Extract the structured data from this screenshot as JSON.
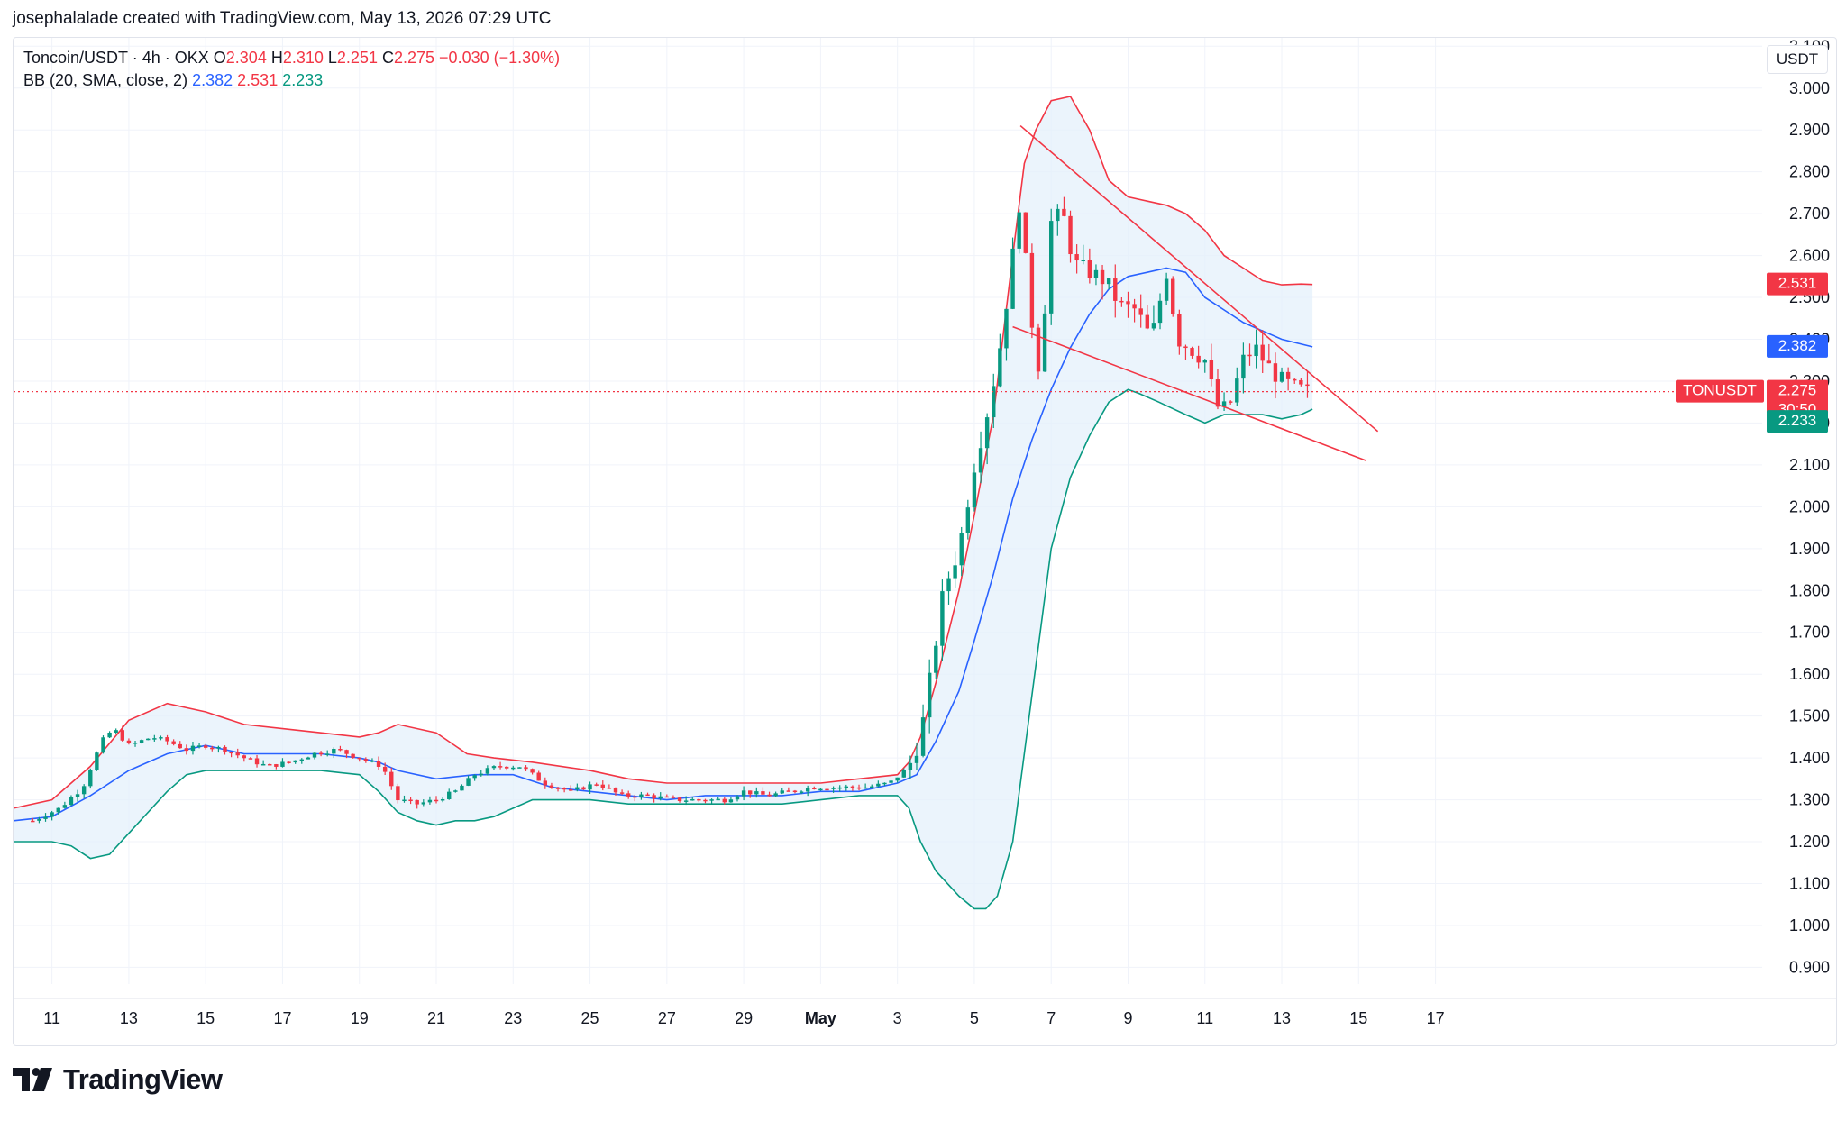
{
  "credit": "josephalalade created with TradingView.com, May 13, 2026 07:29 UTC",
  "legend": {
    "symbol": "Toncoin/USDT · 4h · OKX",
    "o_label": "O",
    "o_value": "2.304",
    "h_label": "H",
    "h_value": "2.310",
    "l_label": "L",
    "l_value": "2.251",
    "c_label": "C",
    "c_value": "2.275",
    "change": "−0.030 (−1.30%)",
    "bb_label": "BB (20, SMA, close, 2)",
    "bb_basis": "2.382",
    "bb_upper": "2.531",
    "bb_lower": "2.233"
  },
  "currency_button": "USDT",
  "brand": "TradingView",
  "price_tags": {
    "symbol": "TONUSDT",
    "price": "2.275",
    "countdown": "30:50",
    "upper": "2.531",
    "basis": "2.382",
    "lower": "2.233"
  },
  "colors": {
    "up": "#089981",
    "down": "#f23645",
    "basis": "#2962ff",
    "upper": "#f23645",
    "lower": "#089981",
    "band_fill": "#e3effb",
    "trendline": "#f23645"
  },
  "chart_data": {
    "type": "candlestick",
    "x_tick_labels": [
      "11",
      "13",
      "15",
      "17",
      "19",
      "21",
      "23",
      "25",
      "27",
      "29",
      "May",
      "3",
      "5",
      "7",
      "9",
      "11",
      "13",
      "15",
      "17"
    ],
    "y_tick_labels": [
      "0.900",
      "1.000",
      "1.100",
      "1.200",
      "1.300",
      "1.400",
      "1.500",
      "1.600",
      "1.700",
      "1.800",
      "1.900",
      "2.000",
      "2.100",
      "2.200",
      "2.300",
      "2.400",
      "2.500",
      "2.600",
      "2.700",
      "2.800",
      "2.900",
      "3.000",
      "3.100"
    ],
    "ylim": [
      0.86,
      3.12
    ],
    "xlim_days": [
      0,
      45.5
    ],
    "candle_days": [
      0.5,
      33.8
    ],
    "close_path": [
      [
        0.5,
        1.25
      ],
      [
        1.2,
        1.28
      ],
      [
        1.8,
        1.33
      ],
      [
        2.3,
        1.44
      ],
      [
        2.6,
        1.47
      ],
      [
        3.0,
        1.43
      ],
      [
        3.6,
        1.45
      ],
      [
        4.0,
        1.44
      ],
      [
        4.5,
        1.42
      ],
      [
        5.0,
        1.43
      ],
      [
        5.5,
        1.42
      ],
      [
        6.0,
        1.4
      ],
      [
        6.6,
        1.38
      ],
      [
        7.2,
        1.39
      ],
      [
        7.8,
        1.41
      ],
      [
        8.4,
        1.42
      ],
      [
        9.0,
        1.4
      ],
      [
        9.6,
        1.38
      ],
      [
        10.0,
        1.3
      ],
      [
        10.5,
        1.29
      ],
      [
        11.0,
        1.3
      ],
      [
        11.5,
        1.32
      ],
      [
        12.0,
        1.36
      ],
      [
        12.6,
        1.38
      ],
      [
        13.2,
        1.38
      ],
      [
        13.8,
        1.34
      ],
      [
        14.5,
        1.32
      ],
      [
        15.2,
        1.34
      ],
      [
        15.8,
        1.31
      ],
      [
        16.5,
        1.31
      ],
      [
        17.2,
        1.3
      ],
      [
        17.8,
        1.3
      ],
      [
        18.5,
        1.3
      ],
      [
        19.0,
        1.32
      ],
      [
        19.6,
        1.31
      ],
      [
        20.2,
        1.32
      ],
      [
        20.8,
        1.33
      ],
      [
        21.5,
        1.33
      ],
      [
        22.2,
        1.33
      ],
      [
        22.8,
        1.34
      ],
      [
        23.3,
        1.38
      ],
      [
        23.6,
        1.45
      ],
      [
        23.9,
        1.62
      ],
      [
        24.2,
        1.8
      ],
      [
        24.6,
        1.9
      ],
      [
        25.0,
        2.1
      ],
      [
        25.4,
        2.25
      ],
      [
        25.7,
        2.4
      ],
      [
        26.0,
        2.6
      ],
      [
        26.2,
        2.75
      ],
      [
        26.4,
        2.5
      ],
      [
        26.7,
        2.32
      ],
      [
        27.0,
        2.68
      ],
      [
        27.3,
        2.7
      ],
      [
        27.6,
        2.58
      ],
      [
        28.0,
        2.56
      ],
      [
        28.4,
        2.54
      ],
      [
        28.8,
        2.48
      ],
      [
        29.2,
        2.47
      ],
      [
        29.6,
        2.4
      ],
      [
        30.0,
        2.56
      ],
      [
        30.3,
        2.4
      ],
      [
        30.6,
        2.38
      ],
      [
        31.0,
        2.35
      ],
      [
        31.3,
        2.24
      ],
      [
        31.6,
        2.23
      ],
      [
        32.0,
        2.35
      ],
      [
        32.3,
        2.38
      ],
      [
        32.6,
        2.34
      ],
      [
        33.0,
        2.3
      ],
      [
        33.4,
        2.28
      ],
      [
        33.8,
        2.275
      ]
    ],
    "bollinger": {
      "upper": [
        [
          0,
          1.28
        ],
        [
          1,
          1.3
        ],
        [
          2,
          1.38
        ],
        [
          3,
          1.49
        ],
        [
          4,
          1.53
        ],
        [
          5,
          1.51
        ],
        [
          6,
          1.48
        ],
        [
          7,
          1.47
        ],
        [
          8,
          1.46
        ],
        [
          9,
          1.45
        ],
        [
          9.5,
          1.46
        ],
        [
          10,
          1.48
        ],
        [
          11,
          1.46
        ],
        [
          11.8,
          1.41
        ],
        [
          12.5,
          1.4
        ],
        [
          13.5,
          1.39
        ],
        [
          15,
          1.37
        ],
        [
          16,
          1.35
        ],
        [
          17,
          1.34
        ],
        [
          18,
          1.34
        ],
        [
          19,
          1.34
        ],
        [
          20,
          1.34
        ],
        [
          21,
          1.34
        ],
        [
          22,
          1.35
        ],
        [
          23,
          1.36
        ],
        [
          23.3,
          1.39
        ],
        [
          23.6,
          1.45
        ],
        [
          24,
          1.58
        ],
        [
          24.6,
          1.8
        ],
        [
          25,
          1.98
        ],
        [
          25.5,
          2.22
        ],
        [
          26,
          2.6
        ],
        [
          26.3,
          2.82
        ],
        [
          26.6,
          2.9
        ],
        [
          27,
          2.97
        ],
        [
          27.5,
          2.98
        ],
        [
          28,
          2.9
        ],
        [
          28.5,
          2.78
        ],
        [
          29,
          2.74
        ],
        [
          29.5,
          2.73
        ],
        [
          30,
          2.72
        ],
        [
          30.5,
          2.7
        ],
        [
          31,
          2.66
        ],
        [
          31.5,
          2.6
        ],
        [
          32,
          2.57
        ],
        [
          32.5,
          2.54
        ],
        [
          33,
          2.53
        ],
        [
          33.5,
          2.532
        ],
        [
          33.8,
          2.531
        ]
      ],
      "basis": [
        [
          0,
          1.25
        ],
        [
          1,
          1.26
        ],
        [
          2,
          1.31
        ],
        [
          3,
          1.37
        ],
        [
          4,
          1.41
        ],
        [
          5,
          1.43
        ],
        [
          6,
          1.41
        ],
        [
          7,
          1.41
        ],
        [
          8,
          1.41
        ],
        [
          9,
          1.4
        ],
        [
          9.5,
          1.39
        ],
        [
          10,
          1.37
        ],
        [
          11,
          1.35
        ],
        [
          12,
          1.36
        ],
        [
          13,
          1.36
        ],
        [
          14,
          1.33
        ],
        [
          15,
          1.32
        ],
        [
          16,
          1.31
        ],
        [
          17,
          1.3
        ],
        [
          18,
          1.31
        ],
        [
          19,
          1.31
        ],
        [
          20,
          1.31
        ],
        [
          21,
          1.32
        ],
        [
          22,
          1.32
        ],
        [
          23,
          1.34
        ],
        [
          23.5,
          1.36
        ],
        [
          24,
          1.44
        ],
        [
          24.6,
          1.56
        ],
        [
          25,
          1.68
        ],
        [
          25.5,
          1.84
        ],
        [
          26,
          2.02
        ],
        [
          26.5,
          2.16
        ],
        [
          27,
          2.28
        ],
        [
          27.5,
          2.38
        ],
        [
          28,
          2.46
        ],
        [
          28.5,
          2.52
        ],
        [
          29,
          2.55
        ],
        [
          29.5,
          2.56
        ],
        [
          30,
          2.57
        ],
        [
          30.5,
          2.56
        ],
        [
          31,
          2.5
        ],
        [
          31.5,
          2.47
        ],
        [
          32,
          2.44
        ],
        [
          32.5,
          2.42
        ],
        [
          33,
          2.4
        ],
        [
          33.8,
          2.382
        ]
      ],
      "lower": [
        [
          0,
          1.2
        ],
        [
          1,
          1.2
        ],
        [
          1.5,
          1.19
        ],
        [
          2,
          1.16
        ],
        [
          2.5,
          1.17
        ],
        [
          3,
          1.22
        ],
        [
          3.5,
          1.27
        ],
        [
          4,
          1.32
        ],
        [
          4.5,
          1.36
        ],
        [
          5,
          1.37
        ],
        [
          6,
          1.37
        ],
        [
          7,
          1.37
        ],
        [
          8,
          1.37
        ],
        [
          9,
          1.36
        ],
        [
          9.5,
          1.32
        ],
        [
          10,
          1.27
        ],
        [
          10.5,
          1.25
        ],
        [
          11,
          1.24
        ],
        [
          11.5,
          1.25
        ],
        [
          12,
          1.25
        ],
        [
          12.5,
          1.26
        ],
        [
          13,
          1.28
        ],
        [
          13.5,
          1.3
        ],
        [
          14,
          1.3
        ],
        [
          15,
          1.3
        ],
        [
          16,
          1.29
        ],
        [
          17,
          1.29
        ],
        [
          18,
          1.29
        ],
        [
          19,
          1.29
        ],
        [
          20,
          1.29
        ],
        [
          21,
          1.3
        ],
        [
          22,
          1.31
        ],
        [
          23,
          1.31
        ],
        [
          23.3,
          1.28
        ],
        [
          23.6,
          1.2
        ],
        [
          24,
          1.13
        ],
        [
          24.6,
          1.07
        ],
        [
          25,
          1.04
        ],
        [
          25.3,
          1.04
        ],
        [
          25.6,
          1.07
        ],
        [
          26,
          1.2
        ],
        [
          26.5,
          1.55
        ],
        [
          27,
          1.9
        ],
        [
          27.5,
          2.07
        ],
        [
          28,
          2.17
        ],
        [
          28.5,
          2.25
        ],
        [
          29,
          2.28
        ],
        [
          29.3,
          2.27
        ],
        [
          29.8,
          2.25
        ],
        [
          30.5,
          2.22
        ],
        [
          31,
          2.2
        ],
        [
          31.5,
          2.22
        ],
        [
          32,
          2.22
        ],
        [
          32.5,
          2.22
        ],
        [
          33,
          2.21
        ],
        [
          33.5,
          2.22
        ],
        [
          33.8,
          2.233
        ]
      ]
    },
    "trendlines": [
      {
        "from": [
          26.2,
          2.91
        ],
        "to": [
          35.5,
          2.18
        ]
      },
      {
        "from": [
          26.0,
          2.43
        ],
        "to": [
          35.2,
          2.11
        ]
      }
    ],
    "last_price": 2.275
  }
}
